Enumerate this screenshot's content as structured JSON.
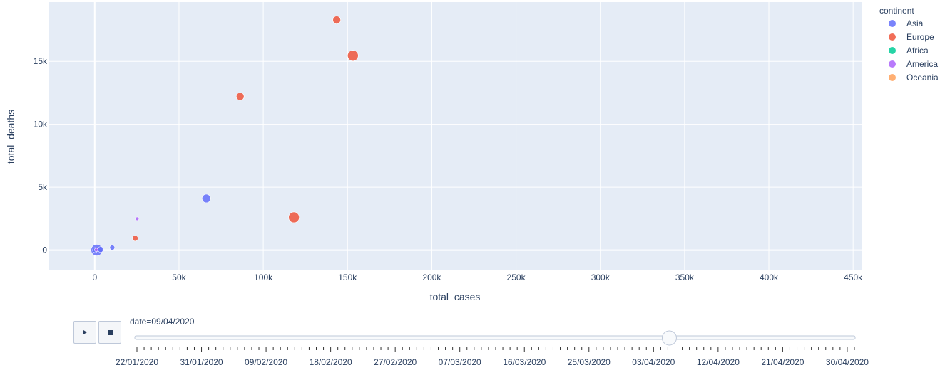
{
  "chart_data": {
    "type": "scatter",
    "xlabel": "total_cases",
    "ylabel": "total_deaths",
    "xlim": [
      -27000,
      455000
    ],
    "ylim": [
      -1600,
      19700
    ],
    "x_ticks": [
      0,
      50000,
      100000,
      150000,
      200000,
      250000,
      300000,
      350000,
      400000,
      450000
    ],
    "x_tick_labels": [
      "0",
      "50k",
      "100k",
      "150k",
      "200k",
      "250k",
      "300k",
      "350k",
      "400k",
      "450k"
    ],
    "y_ticks": [
      0,
      5000,
      10000,
      15000
    ],
    "y_tick_labels": [
      "0",
      "5k",
      "10k",
      "15k"
    ],
    "grid": true,
    "legend_title": "continent",
    "legend_position": "top-right",
    "series": [
      {
        "name": "Asia",
        "color": "#636efa",
        "points": [
          {
            "x": 66220,
            "y": 4110,
            "size": 10
          },
          {
            "x": 10400,
            "y": 210,
            "size": 5
          },
          {
            "x": 1200,
            "y": 10,
            "size": 14
          },
          {
            "x": 3500,
            "y": 60,
            "size": 6
          },
          {
            "x": 200,
            "y": 5,
            "size": 5
          }
        ]
      },
      {
        "name": "Europe",
        "color": "#ef553b",
        "points": [
          {
            "x": 143600,
            "y": 18280,
            "size": 9
          },
          {
            "x": 153200,
            "y": 15450,
            "size": 13
          },
          {
            "x": 86300,
            "y": 12210,
            "size": 9
          },
          {
            "x": 118200,
            "y": 2610,
            "size": 13
          },
          {
            "x": 24000,
            "y": 950,
            "size": 6
          }
        ]
      },
      {
        "name": "Africa",
        "color": "#00cc96",
        "points": []
      },
      {
        "name": "America",
        "color": "#ab63fa",
        "points": [
          {
            "x": 25200,
            "y": 2500,
            "size": 3
          },
          {
            "x": 900,
            "y": 30,
            "size": 3
          }
        ]
      },
      {
        "name": "Oceania",
        "color": "#ffa15a",
        "points": []
      }
    ]
  },
  "controls": {
    "slider_label": "date=09/04/2020",
    "slider_position": 0.742,
    "date_labels": [
      "22/01/2020",
      "31/01/2020",
      "09/02/2020",
      "18/02/2020",
      "27/02/2020",
      "07/03/2020",
      "16/03/2020",
      "25/03/2020",
      "03/04/2020",
      "12/04/2020",
      "21/04/2020",
      "30/04/2020"
    ]
  }
}
